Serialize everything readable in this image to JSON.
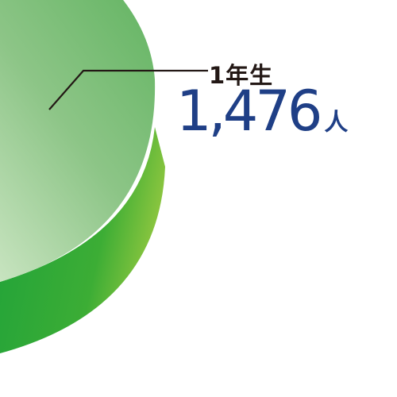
{
  "chart_data": {
    "type": "pie",
    "slices": [
      {
        "label": "1年生",
        "value_text": "1,476",
        "unit": "人",
        "value": 1476,
        "color_top_light": "#c8e4c0",
        "color_top_dark": "#6cb86a",
        "color_side_dark": "#1ea23a",
        "color_side_light": "#8dc63f"
      }
    ]
  }
}
